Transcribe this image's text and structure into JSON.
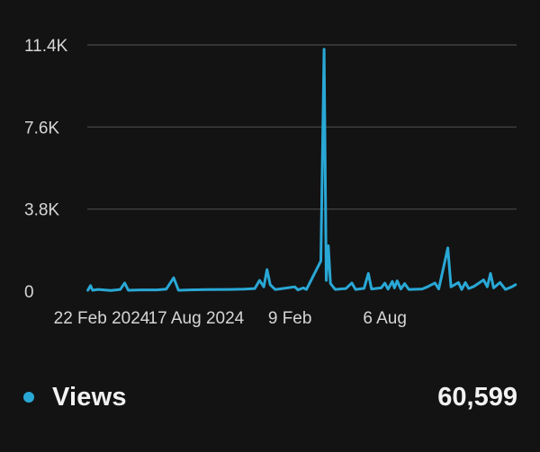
{
  "chart_data": {
    "type": "line",
    "title": "",
    "xlabel": "",
    "ylabel": "",
    "ylim": [
      0,
      11400
    ],
    "yticks": [
      "0",
      "3.8K",
      "7.6K",
      "11.4K"
    ],
    "ytick_values": [
      0,
      3800,
      7600,
      11400
    ],
    "xtick_labels": [
      "22 Feb 2024",
      "17 Aug 2024",
      "9 Feb",
      "6 Aug"
    ],
    "xtick_dates": [
      "2024-02-22",
      "2024-08-17",
      "2025-02-09",
      "2025-08-06"
    ],
    "grid": true,
    "series": [
      {
        "name": "Views",
        "color": "#29a8d6",
        "points": [
          [
            "2024-01-27",
            40
          ],
          [
            "2024-02-01",
            260
          ],
          [
            "2024-02-05",
            40
          ],
          [
            "2024-02-15",
            80
          ],
          [
            "2024-03-10",
            30
          ],
          [
            "2024-03-28",
            80
          ],
          [
            "2024-04-05",
            380
          ],
          [
            "2024-04-12",
            40
          ],
          [
            "2024-05-05",
            60
          ],
          [
            "2024-06-05",
            60
          ],
          [
            "2024-06-22",
            90
          ],
          [
            "2024-07-06",
            620
          ],
          [
            "2024-07-15",
            40
          ],
          [
            "2024-08-05",
            60
          ],
          [
            "2024-09-05",
            70
          ],
          [
            "2024-10-15",
            80
          ],
          [
            "2024-11-15",
            90
          ],
          [
            "2024-12-05",
            120
          ],
          [
            "2024-12-14",
            500
          ],
          [
            "2024-12-22",
            200
          ],
          [
            "2024-12-28",
            1000
          ],
          [
            "2025-01-03",
            300
          ],
          [
            "2025-01-12",
            80
          ],
          [
            "2025-01-20",
            100
          ],
          [
            "2025-02-18",
            200
          ],
          [
            "2025-02-24",
            60
          ],
          [
            "2025-03-06",
            150
          ],
          [
            "2025-03-12",
            80
          ],
          [
            "2025-04-08",
            1400
          ],
          [
            "2025-04-14",
            11200
          ],
          [
            "2025-04-18",
            500
          ],
          [
            "2025-04-22",
            2100
          ],
          [
            "2025-04-26",
            350
          ],
          [
            "2025-05-05",
            80
          ],
          [
            "2025-05-25",
            120
          ],
          [
            "2025-06-05",
            380
          ],
          [
            "2025-06-12",
            80
          ],
          [
            "2025-06-28",
            130
          ],
          [
            "2025-07-06",
            820
          ],
          [
            "2025-07-12",
            100
          ],
          [
            "2025-07-30",
            150
          ],
          [
            "2025-08-06",
            370
          ],
          [
            "2025-08-12",
            90
          ],
          [
            "2025-08-20",
            450
          ],
          [
            "2025-08-24",
            150
          ],
          [
            "2025-08-29",
            480
          ],
          [
            "2025-09-05",
            100
          ],
          [
            "2025-09-12",
            350
          ],
          [
            "2025-09-20",
            80
          ],
          [
            "2025-10-15",
            100
          ],
          [
            "2025-10-25",
            200
          ],
          [
            "2025-11-08",
            380
          ],
          [
            "2025-11-15",
            100
          ],
          [
            "2025-12-02",
            2000
          ],
          [
            "2025-12-08",
            200
          ],
          [
            "2025-12-22",
            400
          ],
          [
            "2025-12-28",
            80
          ],
          [
            "2026-01-04",
            400
          ],
          [
            "2026-01-10",
            120
          ],
          [
            "2026-01-20",
            220
          ],
          [
            "2026-02-07",
            520
          ],
          [
            "2026-02-14",
            200
          ],
          [
            "2026-02-20",
            820
          ],
          [
            "2026-02-26",
            150
          ],
          [
            "2026-03-10",
            400
          ],
          [
            "2026-03-20",
            80
          ],
          [
            "2026-04-01",
            200
          ],
          [
            "2026-04-08",
            300
          ]
        ]
      }
    ]
  },
  "legend": {
    "label": "Views",
    "total": "60,599",
    "dot_color": "#29a8d6"
  }
}
